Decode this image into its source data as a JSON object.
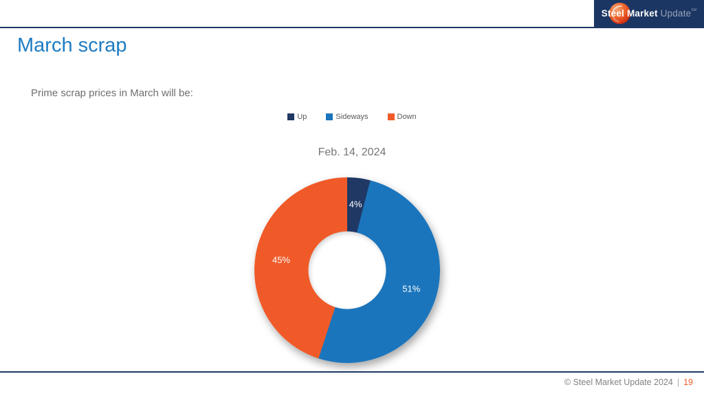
{
  "header": {
    "logo": {
      "bold": "Steel Market",
      "light": " Update",
      "sm": "SM"
    }
  },
  "slide": {
    "title": "March scrap",
    "subtitle": "Prime scrap prices in March will be:"
  },
  "chart_data": {
    "type": "pie",
    "donut": true,
    "hole_ratio": 0.42,
    "title": "Feb. 14, 2024",
    "legend_position": "top-center",
    "slices": [
      {
        "label": "Up",
        "value": 4,
        "pct_label": "4%",
        "color": "#1F3864"
      },
      {
        "label": "Sideways",
        "value": 51,
        "pct_label": "51%",
        "color": "#1B75BC"
      },
      {
        "label": "Down",
        "value": 45,
        "pct_label": "45%",
        "color": "#F05A28"
      }
    ]
  },
  "footer": {
    "copyright": "© Steel Market Update 2024",
    "separator": "|",
    "page_number": "19"
  }
}
